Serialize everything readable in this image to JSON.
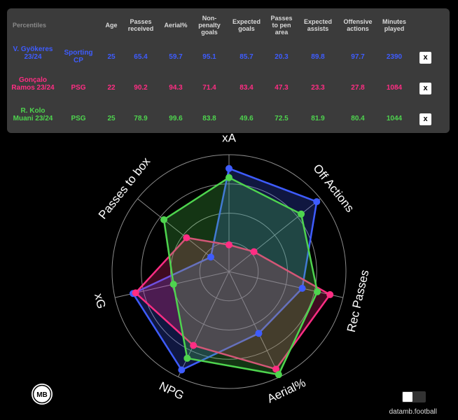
{
  "table": {
    "corner": "Percentiles",
    "headers": [
      "Age",
      "Passes received",
      "Aerial%",
      "Non-penalty goals",
      "Expected goals",
      "Passes to pen area",
      "Expected assists",
      "Offensive actions",
      "Minutes played"
    ],
    "rows": [
      {
        "name": "V. Gyökeres 23/24",
        "club": "Sporting CP",
        "values": [
          "25",
          "65.4",
          "59.7",
          "95.1",
          "85.7",
          "20.3",
          "89.8",
          "97.7",
          "2390"
        ],
        "color": "#3e5cff",
        "remove": "x"
      },
      {
        "name": "Gonçalo Ramos 23/24",
        "club": "PSG",
        "values": [
          "22",
          "90.2",
          "94.3",
          "71.4",
          "83.4",
          "47.3",
          "23.3",
          "27.8",
          "1084"
        ],
        "color": "#ff2d83",
        "remove": "x"
      },
      {
        "name": "R. Kolo Muani 23/24",
        "club": "PSG",
        "values": [
          "25",
          "78.9",
          "99.6",
          "83.8",
          "49.6",
          "72.5",
          "81.9",
          "80.4",
          "1044"
        ],
        "color": "#4ed44e",
        "remove": "x"
      }
    ]
  },
  "chart_data": {
    "type": "radar",
    "axes": [
      "xA",
      "Off Actions",
      "Rec Passes",
      "Aerial%",
      "NPG",
      "xG",
      "Passes to box"
    ],
    "range": [
      0,
      100
    ],
    "series": [
      {
        "name": "V. Gyökeres 23/24",
        "color": "#3e5cff",
        "values": [
          89.8,
          97.7,
          65.4,
          59.7,
          95.1,
          85.7,
          20.3
        ]
      },
      {
        "name": "Gonçalo Ramos 23/24",
        "color": "#ff2d83",
        "values": [
          23.3,
          27.8,
          90.2,
          94.3,
          71.4,
          83.4,
          47.3
        ]
      },
      {
        "name": "R. Kolo Muani 23/24",
        "color": "#4ed44e",
        "values": [
          81.9,
          80.4,
          78.9,
          99.6,
          83.8,
          49.6,
          72.5
        ]
      }
    ]
  },
  "footer": {
    "brand": "datamb.football",
    "logo_text": "MB"
  },
  "colors": {
    "background": "#000000",
    "panel": "#3b3b3b",
    "grid": "#8a8a8a"
  }
}
